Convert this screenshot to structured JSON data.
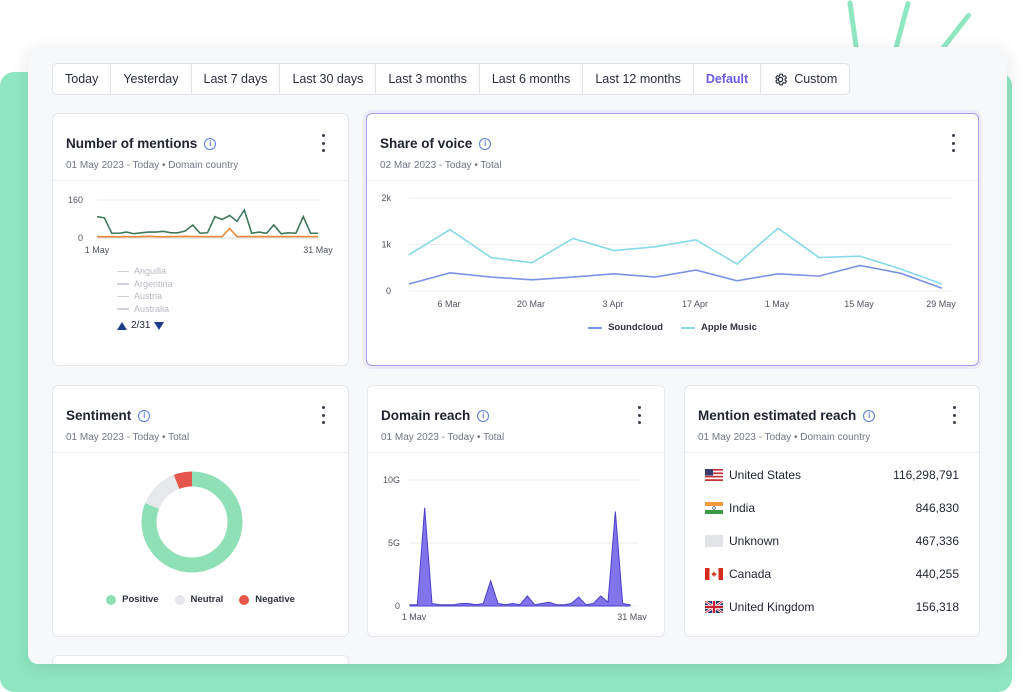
{
  "toolbar": {
    "tabs": [
      {
        "label": "Today"
      },
      {
        "label": "Yesterday"
      },
      {
        "label": "Last 7 days"
      },
      {
        "label": "Last 30 days"
      },
      {
        "label": "Last 3 months"
      },
      {
        "label": "Last 6 months"
      },
      {
        "label": "Last 12 months"
      },
      {
        "label": "Default",
        "active": true
      },
      {
        "label": "Custom",
        "icon": "gear-icon"
      }
    ]
  },
  "cards": {
    "mentions": {
      "title": "Number of mentions",
      "subtitle": "01 May 2023 - Today • Domain country",
      "legend": [
        "Anguilla",
        "Argentina",
        "Austria",
        "Australia"
      ],
      "pager": "2/31"
    },
    "sov": {
      "title": "Share of voice",
      "subtitle": "02 Mar 2023 - Today • Total",
      "legend": [
        "Soundcloud",
        "Apple Music"
      ]
    },
    "sentiment": {
      "title": "Sentiment",
      "subtitle": "01 May 2023 - Today • Total",
      "legend": [
        "Positive",
        "Neutral",
        "Negative"
      ]
    },
    "domain_reach": {
      "title": "Domain reach",
      "subtitle": "01 May 2023 - Today • Total"
    },
    "estimated_reach": {
      "title": "Mention estimated reach",
      "subtitle": "01 May 2023 - Today • Domain country",
      "rows": [
        {
          "country": "United States",
          "value": "116,298,791",
          "flag": "us-flag-icon"
        },
        {
          "country": "India",
          "value": "846,830",
          "flag": "india-flag-icon"
        },
        {
          "country": "Unknown",
          "value": "467,336",
          "flag": "unknown-flag-icon"
        },
        {
          "country": "Canada",
          "value": "440,255",
          "flag": "canada-flag-icon"
        },
        {
          "country": "United Kingdom",
          "value": "156,318",
          "flag": "uk-flag-icon"
        }
      ]
    }
  },
  "colors": {
    "accent": "#6c5ce7",
    "soundcloud": "#7b93e6",
    "apple_music": "#86d9e8",
    "positive": "#8fe0b6",
    "neutral": "#e7e8ec",
    "negative": "#e5564d",
    "mentions_main": "#3f7a5c",
    "mentions_secondary": "#f08a3c",
    "domain_fill": "#6c5ce7"
  },
  "chart_data": [
    {
      "type": "line",
      "title": "Number of mentions",
      "x": [
        "1 May",
        "2",
        "3",
        "4",
        "5",
        "6",
        "7",
        "8",
        "9",
        "10",
        "11",
        "12",
        "13",
        "14",
        "15",
        "16",
        "17",
        "18",
        "19",
        "20",
        "21",
        "22",
        "23",
        "24",
        "25",
        "26",
        "27",
        "28",
        "29",
        "30",
        "31 May"
      ],
      "xticks": [
        "1 May",
        "31 May"
      ],
      "yticks": [
        0,
        160
      ],
      "ylim": [
        0,
        160
      ],
      "series": [
        {
          "values": [
            90,
            85,
            20,
            20,
            25,
            18,
            22,
            25,
            25,
            28,
            22,
            22,
            30,
            55,
            20,
            22,
            90,
            78,
            95,
            70,
            118,
            20,
            25,
            20,
            55,
            18,
            22,
            20,
            90,
            20,
            20
          ]
        },
        {
          "values": [
            6,
            5,
            6,
            5,
            6,
            5,
            6,
            7,
            6,
            5,
            6,
            6,
            7,
            6,
            6,
            6,
            6,
            6,
            40,
            6,
            6,
            6,
            6,
            6,
            6,
            6,
            6,
            6,
            6,
            6,
            6
          ]
        }
      ]
    },
    {
      "type": "line",
      "title": "Share of voice",
      "x": [
        "2 Mar",
        "9 Mar",
        "16 Mar",
        "23 Mar",
        "30 Mar",
        "6 Apr",
        "13 Apr",
        "20 Apr",
        "27 Apr",
        "4 May",
        "11 May",
        "18 May",
        "25 May",
        "31 May"
      ],
      "xticks": [
        "6 Mar",
        "20 Mar",
        "3 Apr",
        "17 Apr",
        "1 May",
        "15 May",
        "29 May"
      ],
      "yticks": [
        "0",
        "1k",
        "2k"
      ],
      "ylim": [
        0,
        2000
      ],
      "series": [
        {
          "name": "Soundcloud",
          "values": [
            150,
            390,
            300,
            240,
            300,
            370,
            300,
            450,
            220,
            370,
            320,
            550,
            380,
            60
          ]
        },
        {
          "name": "Apple Music",
          "values": [
            780,
            1320,
            720,
            610,
            1130,
            870,
            950,
            1100,
            580,
            1350,
            720,
            750,
            470,
            150
          ]
        }
      ]
    },
    {
      "type": "pie",
      "title": "Sentiment",
      "categories": [
        "Positive",
        "Neutral",
        "Negative"
      ],
      "values": [
        81,
        13,
        6
      ]
    },
    {
      "type": "area",
      "title": "Domain reach",
      "x": [
        "1 May",
        "2",
        "3",
        "4",
        "5",
        "6",
        "7",
        "8",
        "9",
        "10",
        "11",
        "12",
        "13",
        "14",
        "15",
        "16",
        "17",
        "18",
        "19",
        "20",
        "21",
        "22",
        "23",
        "24",
        "25",
        "26",
        "27",
        "28",
        "29",
        "30",
        "31 May"
      ],
      "xticks": [
        "1 May",
        "31 May"
      ],
      "yticks": [
        "0",
        "5G",
        "10G"
      ],
      "ylim": [
        0,
        10
      ],
      "series": [
        {
          "values": [
            0.1,
            0.1,
            7.8,
            0.2,
            0.1,
            0.1,
            0.1,
            0.2,
            0.2,
            0.1,
            0.2,
            2.0,
            0.2,
            0.1,
            0.2,
            0.1,
            0.8,
            0.1,
            0.2,
            0.3,
            0.1,
            0.1,
            0.2,
            0.7,
            0.1,
            0.2,
            0.8,
            0.3,
            7.5,
            0.2,
            0.1
          ]
        }
      ]
    }
  ]
}
